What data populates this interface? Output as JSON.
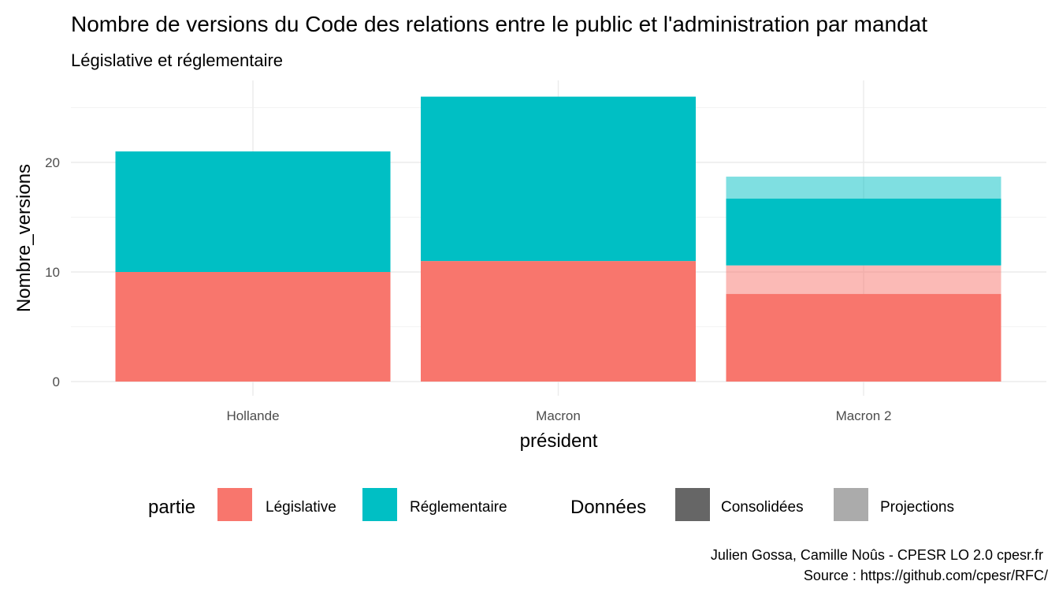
{
  "chart_data": {
    "type": "bar",
    "stacked": true,
    "title": "Nombre de versions du Code des relations entre le public et l'administration par mandat",
    "subtitle": "Législative et réglementaire",
    "xlabel": "président",
    "ylabel": "Nombre_versions",
    "categories": [
      "Hollande",
      "Macron",
      "Macron 2"
    ],
    "y_ticks": [
      0,
      10,
      20
    ],
    "ylim": [
      0,
      27
    ],
    "grid": true,
    "legend_position": "bottom",
    "series": [
      {
        "partie": "Législative",
        "donnees": "Consolidées",
        "color": "#F8766D",
        "values": [
          10,
          11,
          8
        ]
      },
      {
        "partie": "Législative",
        "donnees": "Projections",
        "color": "#F8766D",
        "values": [
          0,
          0,
          2.6
        ]
      },
      {
        "partie": "Réglementaire",
        "donnees": "Consolidées",
        "color": "#00BFC4",
        "values": [
          11,
          15,
          6.1
        ]
      },
      {
        "partie": "Réglementaire",
        "donnees": "Projections",
        "color": "#00BFC4",
        "values": [
          0,
          0,
          2
        ]
      }
    ],
    "legend": {
      "fill_title": "partie",
      "fill_items": [
        {
          "label": "Législative",
          "color": "#F8766D"
        },
        {
          "label": "Réglementaire",
          "color": "#00BFC4"
        }
      ],
      "alpha_title": "Données",
      "alpha_items": [
        {
          "label": "Consolidées",
          "color": "#666666"
        },
        {
          "label": "Projections",
          "color": "#ababab"
        }
      ]
    },
    "caption": [
      "Julien Gossa, Camille Noûs - CPESR LO 2.0 cpesr.fr",
      "Source : https://github.com/cpesr/RFC/"
    ]
  }
}
